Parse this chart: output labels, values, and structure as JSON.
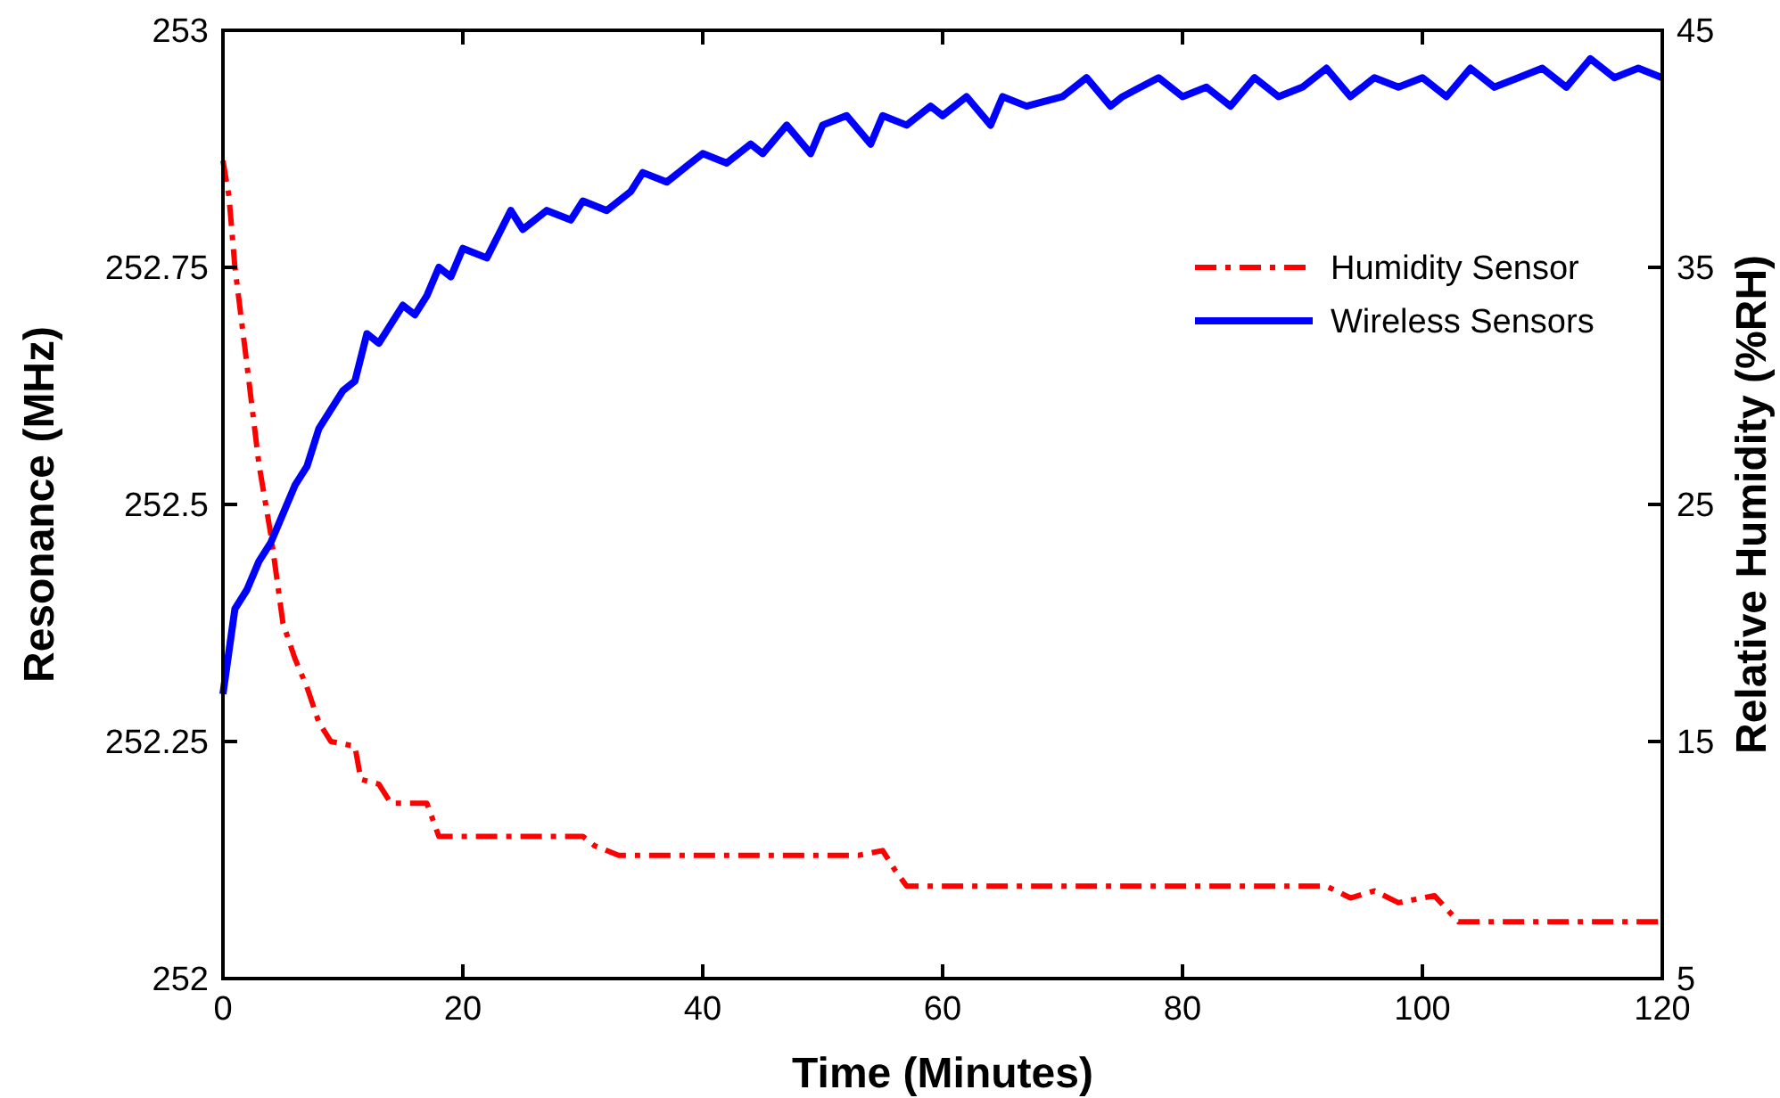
{
  "chart_data": {
    "type": "line",
    "xlabel": "Time (Minutes)",
    "ylabel": "Resonance (MHz)",
    "y2label": "Relative Humidity  (%RH)",
    "xlim": [
      0,
      120
    ],
    "xticks": [
      0,
      20,
      40,
      60,
      80,
      100,
      120
    ],
    "ylim": [
      252,
      253
    ],
    "yticks": [
      252,
      252.25,
      252.5,
      252.75,
      253
    ],
    "y2lim": [
      5,
      45
    ],
    "y2ticks": [
      5,
      15,
      25,
      35,
      45
    ],
    "legend": "top right",
    "grid": false,
    "series": [
      {
        "name": "Humidity Sensor",
        "color": "#ff0000",
        "axis": "y2",
        "line_style": "dashdot",
        "x": [
          0,
          0.5,
          1,
          2,
          3,
          4,
          5,
          6,
          7,
          8,
          9,
          11,
          11.5,
          13,
          14,
          17,
          18,
          30,
          31,
          33,
          53,
          55,
          56,
          57,
          92,
          94,
          96,
          98,
          101,
          103,
          120
        ],
        "values": [
          39.5,
          38,
          35,
          30.9,
          26.7,
          23.7,
          20,
          18.5,
          17.3,
          15.8,
          15,
          14.8,
          13.4,
          13.2,
          12.4,
          12.4,
          11,
          11,
          10.6,
          10.2,
          10.2,
          10.4,
          9.6,
          8.9,
          8.9,
          8.4,
          8.7,
          8.2,
          8.5,
          7.4,
          7.4
        ]
      },
      {
        "name": "Wireless Sensors",
        "color": "#0000ff",
        "axis": "y",
        "line_style": "solid",
        "x": [
          0,
          1,
          2,
          3,
          4,
          5,
          6,
          7,
          8,
          9,
          10,
          11,
          12,
          13,
          14,
          15,
          16,
          17,
          18,
          19,
          20,
          22,
          24,
          25,
          27,
          29,
          30,
          32,
          34,
          35,
          37,
          39,
          40,
          42,
          44,
          45,
          47,
          49,
          50,
          52,
          54,
          55,
          57,
          59,
          60,
          62,
          64,
          65,
          67,
          70,
          72,
          74,
          75,
          78,
          80,
          82,
          84,
          86,
          88,
          90,
          92,
          94,
          96,
          98,
          100,
          102,
          104,
          106,
          108,
          110,
          112,
          114,
          116,
          118,
          120
        ],
        "values": [
          252.3,
          252.39,
          252.41,
          252.44,
          252.46,
          252.49,
          252.52,
          252.54,
          252.58,
          252.6,
          252.62,
          252.63,
          252.68,
          252.67,
          252.69,
          252.71,
          252.7,
          252.72,
          252.75,
          252.74,
          252.77,
          252.76,
          252.81,
          252.79,
          252.81,
          252.8,
          252.82,
          252.81,
          252.83,
          252.85,
          252.84,
          252.86,
          252.87,
          252.86,
          252.88,
          252.87,
          252.9,
          252.87,
          252.9,
          252.91,
          252.88,
          252.91,
          252.9,
          252.92,
          252.91,
          252.93,
          252.9,
          252.93,
          252.92,
          252.93,
          252.95,
          252.92,
          252.93,
          252.95,
          252.93,
          252.94,
          252.92,
          252.95,
          252.93,
          252.94,
          252.96,
          252.93,
          252.95,
          252.94,
          252.95,
          252.93,
          252.96,
          252.94,
          252.95,
          252.96,
          252.94,
          252.97,
          252.95,
          252.96,
          252.95
        ]
      }
    ]
  }
}
